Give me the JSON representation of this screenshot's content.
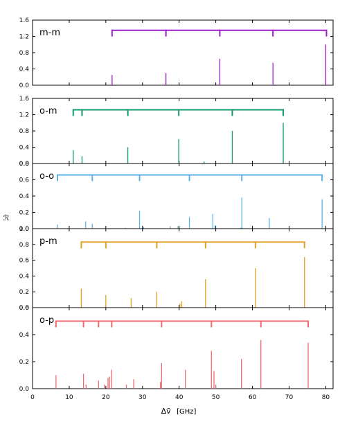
{
  "chart_data": {
    "type": "bar",
    "xlabel": "Δṽ",
    "xlabel_unit": "[GHz]",
    "ylabel": "ℛ",
    "xlim": [
      0,
      82
    ],
    "x_ticks": [
      0,
      10,
      20,
      30,
      40,
      50,
      60,
      70,
      80
    ],
    "panels": [
      {
        "label": "m-m",
        "color": "#9b1fc9",
        "ylim": [
          0,
          1.6
        ],
        "y_ticks": [
          "0.0",
          "0.4",
          "0.8",
          "1.2",
          "1.6"
        ],
        "y_tick_values": [
          0,
          0.4,
          0.8,
          1.2,
          1.6
        ],
        "bracket": {
          "y": 1.35,
          "start": 21.7,
          "end": 80.2,
          "drops": [
            36.4,
            51.1,
            65.6
          ]
        },
        "lines": [
          {
            "x": 21.7,
            "y": 0.25
          },
          {
            "x": 36.4,
            "y": 0.3
          },
          {
            "x": 51.1,
            "y": 0.65
          },
          {
            "x": 65.6,
            "y": 0.55
          },
          {
            "x": 80.0,
            "y": 1.0
          }
        ]
      },
      {
        "label": "o-m",
        "color": "#0e9a6e",
        "ylim": [
          0,
          1.6
        ],
        "y_ticks": [
          "0.0",
          "0.4",
          "0.8",
          "1.2",
          "1.6"
        ],
        "y_tick_values": [
          0,
          0.4,
          0.8,
          1.2,
          1.6
        ],
        "bracket": {
          "y": 1.32,
          "start": 11.1,
          "end": 68.4,
          "drops": [
            13.5,
            26.0,
            39.9,
            54.5
          ]
        },
        "lines": [
          {
            "x": 11.1,
            "y": 0.33
          },
          {
            "x": 13.5,
            "y": 0.18
          },
          {
            "x": 26.0,
            "y": 0.4
          },
          {
            "x": 39.9,
            "y": 0.6
          },
          {
            "x": 46.8,
            "y": 0.05
          },
          {
            "x": 54.5,
            "y": 0.8
          },
          {
            "x": 68.4,
            "y": 1.0
          }
        ]
      },
      {
        "label": "o-o",
        "color": "#5cb3e6",
        "ylim": [
          0,
          0.8
        ],
        "y_ticks": [
          "0.0",
          "0.2",
          "0.4",
          "0.6",
          "0.8"
        ],
        "y_tick_values": [
          0,
          0.2,
          0.4,
          0.6,
          0.8
        ],
        "bracket": {
          "y": 0.66,
          "start": 6.8,
          "end": 79.0,
          "drops": [
            16.3,
            29.2,
            42.8,
            57.1
          ]
        },
        "lines": [
          {
            "x": 6.8,
            "y": 0.05
          },
          {
            "x": 14.5,
            "y": 0.09
          },
          {
            "x": 16.3,
            "y": 0.06
          },
          {
            "x": 25.3,
            "y": 0.01
          },
          {
            "x": 29.2,
            "y": 0.22
          },
          {
            "x": 30.3,
            "y": 0.02
          },
          {
            "x": 37.6,
            "y": 0.03
          },
          {
            "x": 39.7,
            "y": 0.03
          },
          {
            "x": 42.8,
            "y": 0.14
          },
          {
            "x": 49.2,
            "y": 0.18
          },
          {
            "x": 49.8,
            "y": 0.04
          },
          {
            "x": 56.8,
            "y": 0.01
          },
          {
            "x": 57.1,
            "y": 0.38
          },
          {
            "x": 64.6,
            "y": 0.13
          },
          {
            "x": 79.0,
            "y": 0.36
          }
        ]
      },
      {
        "label": "p-m",
        "color": "#e0a024",
        "ylim": [
          0,
          1.0
        ],
        "y_ticks": [
          "0.0",
          "0.2",
          "0.4",
          "0.6",
          "0.8",
          "1.0"
        ],
        "y_tick_values": [
          0,
          0.2,
          0.4,
          0.6,
          0.8,
          1.0
        ],
        "bracket": {
          "y": 0.83,
          "start": 13.3,
          "end": 74.2,
          "drops": [
            20.0,
            33.9,
            47.2,
            60.8
          ]
        },
        "lines": [
          {
            "x": 13.3,
            "y": 0.24
          },
          {
            "x": 20.0,
            "y": 0.16
          },
          {
            "x": 26.9,
            "y": 0.12
          },
          {
            "x": 33.9,
            "y": 0.2
          },
          {
            "x": 40.2,
            "y": 0.05
          },
          {
            "x": 40.7,
            "y": 0.08
          },
          {
            "x": 47.2,
            "y": 0.36
          },
          {
            "x": 60.8,
            "y": 0.5
          },
          {
            "x": 74.2,
            "y": 0.64
          }
        ]
      },
      {
        "label": "o-p",
        "color": "#ee6a6e",
        "ylim": [
          0,
          0.6
        ],
        "y_ticks": [
          "0.0",
          "0.2",
          "0.4",
          "0.6"
        ],
        "y_tick_values": [
          0,
          0.2,
          0.4,
          0.6
        ],
        "bracket": {
          "y": 0.5,
          "start": 6.4,
          "end": 75.2,
          "drops": [
            13.9,
            18.0,
            21.6,
            35.2,
            48.8,
            62.3
          ]
        },
        "lines": [
          {
            "x": 6.4,
            "y": 0.1
          },
          {
            "x": 13.9,
            "y": 0.11
          },
          {
            "x": 14.6,
            "y": 0.03
          },
          {
            "x": 18.0,
            "y": 0.06
          },
          {
            "x": 19.6,
            "y": 0.03
          },
          {
            "x": 20.6,
            "y": 0.08
          },
          {
            "x": 21.0,
            "y": 0.09
          },
          {
            "x": 21.6,
            "y": 0.14
          },
          {
            "x": 25.6,
            "y": 0.03
          },
          {
            "x": 27.6,
            "y": 0.07
          },
          {
            "x": 34.9,
            "y": 0.05
          },
          {
            "x": 35.2,
            "y": 0.19
          },
          {
            "x": 41.7,
            "y": 0.14
          },
          {
            "x": 48.8,
            "y": 0.28
          },
          {
            "x": 49.5,
            "y": 0.13
          },
          {
            "x": 50.0,
            "y": 0.03
          },
          {
            "x": 57.0,
            "y": 0.22
          },
          {
            "x": 62.3,
            "y": 0.36
          },
          {
            "x": 75.2,
            "y": 0.34
          }
        ]
      }
    ]
  }
}
